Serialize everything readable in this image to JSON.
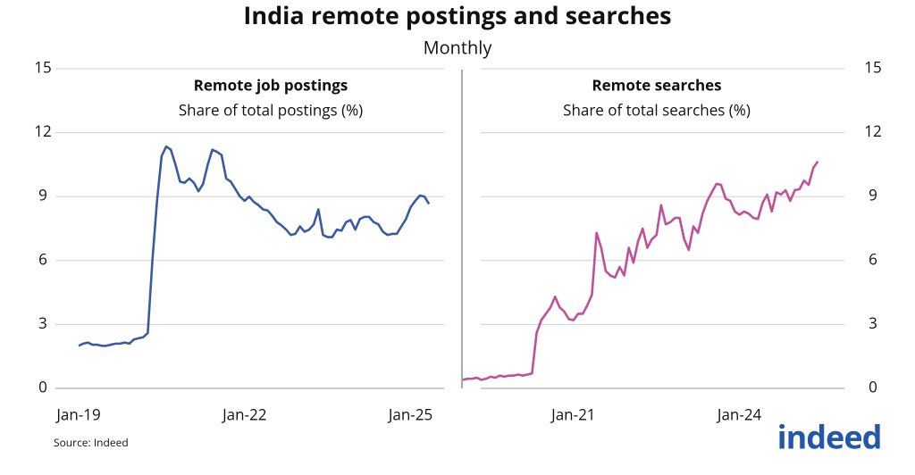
{
  "title": "India remote postings and searches",
  "subtitle": "Monthly",
  "source": "Source: Indeed",
  "logo": "indeed",
  "chart_data": [
    {
      "type": "line",
      "title": "Remote job postings",
      "subtitle": "Share of total postings (%)",
      "y_axis_side": "left",
      "color": "#3a5ba0",
      "categories": [
        "Jan-19",
        null,
        null,
        null,
        null,
        null,
        null,
        null,
        null,
        null,
        null,
        null,
        null,
        null,
        null,
        null,
        null,
        null,
        null,
        null,
        null,
        null,
        null,
        null,
        null,
        null,
        null,
        null,
        null,
        null,
        null,
        null,
        null,
        null,
        null,
        null,
        "Jan-22",
        null,
        null,
        null,
        null,
        null,
        null,
        null,
        null,
        null,
        null,
        null,
        null,
        null,
        null,
        null,
        null,
        null,
        null,
        null,
        null,
        null,
        null,
        null,
        null,
        null,
        null,
        null,
        null,
        null,
        null,
        null,
        null,
        null,
        null,
        null,
        "Jan-25",
        null,
        null,
        null,
        null
      ],
      "values": [
        2.0,
        2.1,
        2.15,
        2.05,
        2.05,
        2.0,
        2.0,
        2.05,
        2.1,
        2.1,
        2.15,
        2.1,
        2.3,
        2.35,
        2.4,
        2.6,
        6.0,
        8.8,
        10.9,
        11.35,
        11.2,
        10.5,
        9.7,
        9.65,
        9.85,
        9.65,
        9.25,
        9.6,
        10.5,
        11.2,
        11.1,
        10.95,
        9.85,
        9.7,
        9.35,
        9.0,
        8.8,
        9.0,
        8.75,
        8.6,
        8.4,
        8.35,
        8.1,
        7.8,
        7.65,
        7.45,
        7.2,
        7.25,
        7.6,
        7.35,
        7.45,
        7.7,
        8.4,
        7.2,
        7.1,
        7.1,
        7.45,
        7.4,
        7.8,
        7.9,
        7.45,
        7.95,
        8.05,
        8.05,
        7.8,
        7.7,
        7.35,
        7.2,
        7.25,
        7.25,
        7.6,
        7.95,
        8.5,
        8.8,
        9.05,
        9.0,
        8.65
      ],
      "ylim": [
        0,
        15
      ],
      "yticks": [
        0,
        3,
        6,
        9,
        12,
        15
      ],
      "grid": true
    },
    {
      "type": "line",
      "title": "Remote searches",
      "subtitle": "Share of total searches (%)",
      "y_axis_side": "right",
      "color": "#c0509a",
      "categories": [
        null,
        null,
        null,
        null,
        null,
        null,
        null,
        null,
        null,
        null,
        null,
        null,
        null,
        null,
        null,
        null,
        null,
        null,
        null,
        null,
        null,
        null,
        null,
        null,
        "Jan-21",
        null,
        null,
        null,
        null,
        null,
        null,
        null,
        null,
        null,
        null,
        null,
        null,
        null,
        null,
        null,
        null,
        null,
        null,
        null,
        null,
        null,
        null,
        null,
        null,
        null,
        null,
        null,
        null,
        null,
        null,
        null,
        null,
        null,
        null,
        null,
        "Jan-24",
        null,
        null,
        null,
        null,
        null,
        null,
        null,
        null,
        null,
        null,
        null,
        null,
        null,
        null,
        null,
        null,
        null
      ],
      "values": [
        0.4,
        0.45,
        0.45,
        0.5,
        0.4,
        0.45,
        0.55,
        0.5,
        0.6,
        0.55,
        0.6,
        0.6,
        0.65,
        0.6,
        0.65,
        0.7,
        2.6,
        3.2,
        3.5,
        3.8,
        4.3,
        3.8,
        3.6,
        3.25,
        3.2,
        3.5,
        3.5,
        3.9,
        4.4,
        7.3,
        6.6,
        5.5,
        5.3,
        5.2,
        5.7,
        5.3,
        6.6,
        5.9,
        6.9,
        7.5,
        6.6,
        7.0,
        7.2,
        8.6,
        7.7,
        7.8,
        8.0,
        8.0,
        7.0,
        6.5,
        7.6,
        7.3,
        8.2,
        8.8,
        9.2,
        9.6,
        9.55,
        8.9,
        8.8,
        8.3,
        8.15,
        8.3,
        8.2,
        8.0,
        7.95,
        8.7,
        9.1,
        8.3,
        9.2,
        9.1,
        9.3,
        8.8,
        9.3,
        9.35,
        9.75,
        9.55,
        10.35,
        10.65
      ],
      "ylim": [
        0,
        15
      ],
      "yticks": [
        0,
        3,
        6,
        9,
        12,
        15
      ],
      "grid": true
    }
  ]
}
